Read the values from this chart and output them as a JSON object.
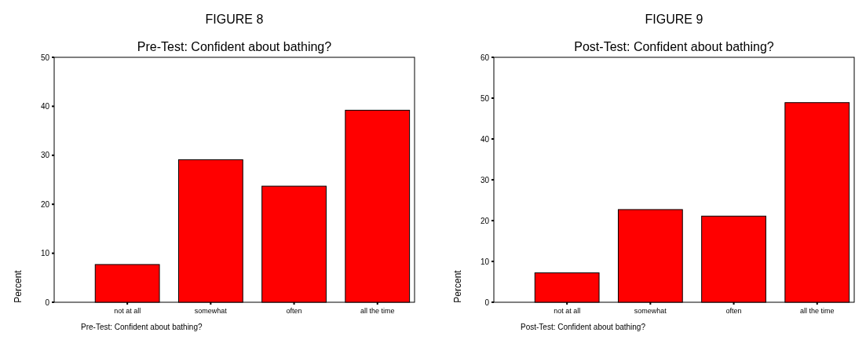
{
  "chart_data": [
    {
      "type": "bar",
      "title": "FIGURE 8",
      "subtitle": "Pre-Test: Confident about bathing?",
      "xlabel": "Pre-Test: Confident about bathing?",
      "ylabel": "Percent",
      "categories": [
        "not at all",
        "somewhat",
        "often",
        "all the time"
      ],
      "values": [
        7.7,
        29.1,
        23.7,
        39.2
      ],
      "color": "#ff0000",
      "ylim": [
        0,
        50
      ],
      "yticks": [
        0,
        10,
        20,
        30,
        40,
        50
      ],
      "grid": false
    },
    {
      "type": "bar",
      "title": "FIGURE 9",
      "subtitle": "Post-Test: Confident about bathing?",
      "xlabel": "Post-Test: Confident about bathing?",
      "ylabel": "Percent",
      "categories": [
        "not at all",
        "somewhat",
        "often",
        "all the time"
      ],
      "values": [
        7.2,
        22.7,
        21.1,
        48.9
      ],
      "color": "#ff0000",
      "ylim": [
        0,
        60
      ],
      "yticks": [
        0,
        10,
        20,
        30,
        40,
        50,
        60
      ],
      "grid": false
    }
  ]
}
